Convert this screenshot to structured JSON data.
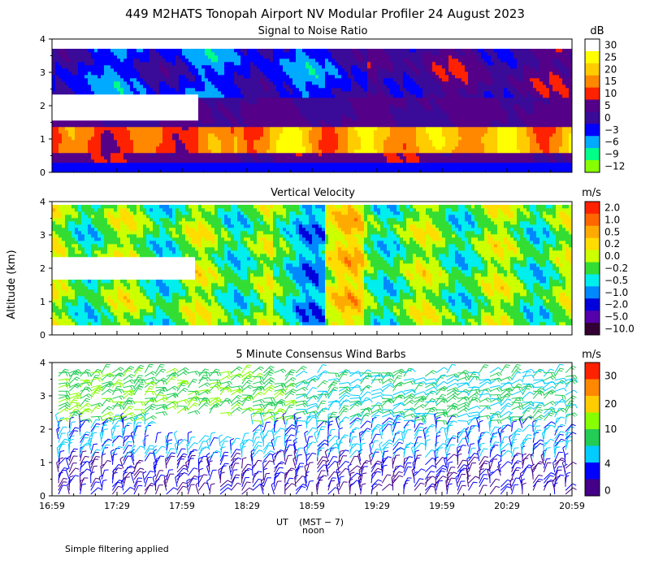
{
  "title": "449 M2HATS Tonopah Airport NV Modular Profiler 24 August 2023",
  "ylabel": "Altitude (km)",
  "xlabel": "UT",
  "xlabel_note": "(MST − 7)",
  "noon_label": "noon",
  "footnote": "Simple filtering applied",
  "x_ticks": [
    "16:59",
    "17:29",
    "17:59",
    "18:29",
    "18:59",
    "19:29",
    "19:59",
    "20:29",
    "20:59"
  ],
  "y_ticks": [
    "0",
    "1",
    "2",
    "3",
    "4"
  ],
  "chart_data": [
    {
      "type": "heatmap",
      "title": "Signal to Noise Ratio",
      "units": "dB",
      "y_range_km": [
        0,
        4
      ],
      "x_range_ut": [
        "16:59",
        "20:59"
      ],
      "colorbar_labels": [
        "30",
        "25",
        "20",
        "15",
        "10",
        "5",
        "0",
        "−3",
        "−6",
        "−9",
        "−12"
      ],
      "colors": [
        "#ffffff",
        "#ffff00",
        "#ffcc00",
        "#ff8800",
        "#ff2200",
        "#550088",
        "#3a0a99",
        "#0000ff",
        "#00aaff",
        "#00ff88",
        "#88ff00"
      ]
    },
    {
      "type": "heatmap",
      "title": "Vertical Velocity",
      "units": "m/s",
      "y_range_km": [
        0,
        4
      ],
      "x_range_ut": [
        "16:59",
        "20:59"
      ],
      "colorbar_labels": [
        "2.0",
        "1.0",
        "0.5",
        "0.2",
        "0.0",
        "−0.2",
        "−0.5",
        "−1.0",
        "−2.0",
        "−5.0",
        "−10.0"
      ],
      "colors": [
        "#ff2200",
        "#ff6600",
        "#ffaa00",
        "#ffdd00",
        "#ccff00",
        "#33dd33",
        "#00eeee",
        "#0088ff",
        "#0000dd",
        "#5500aa",
        "#330033"
      ]
    },
    {
      "type": "scatter",
      "title": "5 Minute Consensus Wind Barbs",
      "units": "m/s",
      "y_range_km": [
        0,
        4
      ],
      "x_range_ut": [
        "16:59",
        "20:59"
      ],
      "colorbar_labels": [
        "30",
        "20",
        "10",
        "4",
        "0"
      ],
      "colors": [
        "#ff2200",
        "#ff8800",
        "#ffcc00",
        "#88ff00",
        "#22cc55",
        "#00ccff",
        "#0000ff",
        "#440088"
      ]
    }
  ]
}
